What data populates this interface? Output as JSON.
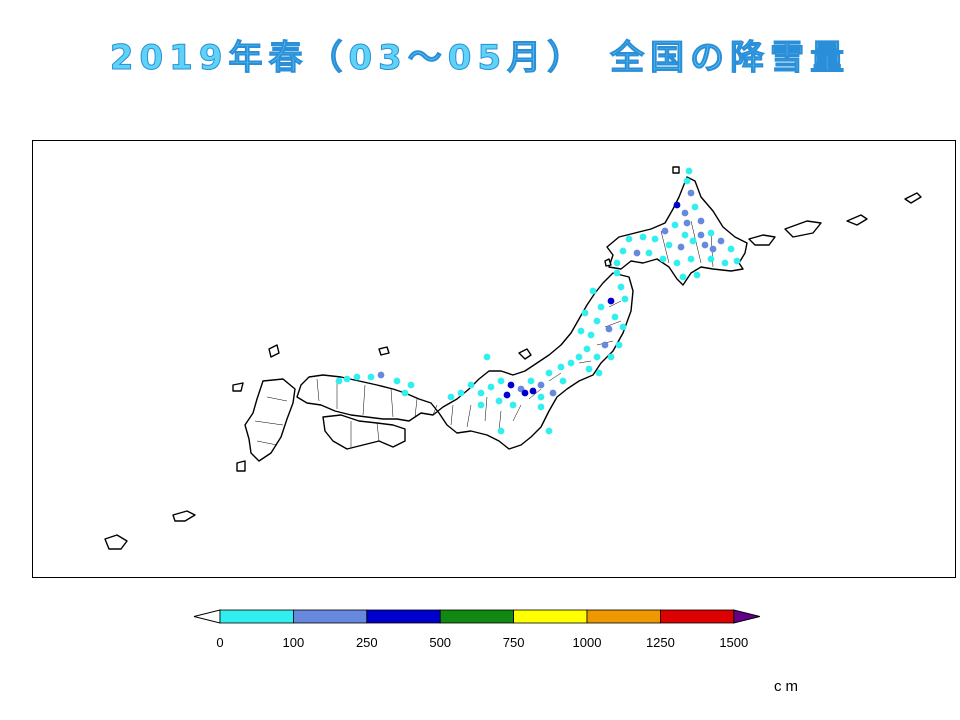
{
  "title": "2019年春（03～05月）　全国の降雪量",
  "unit_label": "cm",
  "legend": {
    "ticks": [
      "0",
      "100",
      "250",
      "500",
      "750",
      "1000",
      "1250",
      "1500"
    ],
    "bins": [
      {
        "min": 0,
        "max": 100,
        "color": "#33eeee"
      },
      {
        "min": 100,
        "max": 250,
        "color": "#6688dd"
      },
      {
        "min": 250,
        "max": 500,
        "color": "#0000cc"
      },
      {
        "min": 500,
        "max": 750,
        "color": "#118811"
      },
      {
        "min": 750,
        "max": 1000,
        "color": "#ffff00"
      },
      {
        "min": 1000,
        "max": 1250,
        "color": "#ee9900"
      },
      {
        "min": 1250,
        "max": 1500,
        "color": "#dd0000"
      }
    ],
    "under_color": "#ffffff",
    "over_color": "#660088"
  },
  "station_colors": {
    "low": "#33eeee",
    "mid": "#6688dd",
    "high": "#0000cc"
  }
}
